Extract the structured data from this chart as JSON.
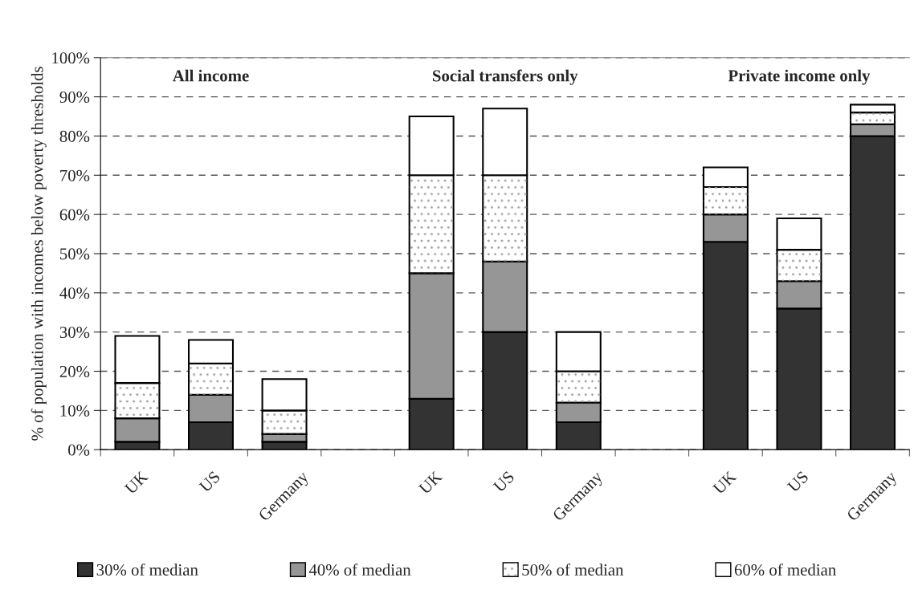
{
  "chart_data": {
    "type": "bar",
    "stacked": true,
    "ylabel": "% of population with incomes below poverty thresholds",
    "categories": [
      "UK",
      "US",
      "Germany",
      null,
      "UK",
      "US",
      "Germany",
      null,
      "UK",
      "US",
      "Germany"
    ],
    "series": [
      {
        "name": "30% of median",
        "color": "#333333",
        "values": [
          2,
          7,
          2,
          null,
          13,
          30,
          7,
          null,
          53,
          36,
          80
        ]
      },
      {
        "name": "40% of median",
        "color": "#969696",
        "values": [
          6,
          7,
          2,
          null,
          32,
          18,
          5,
          null,
          7,
          7,
          3
        ]
      },
      {
        "name": "50% of median",
        "color": "#ffffff",
        "values": [
          9,
          8,
          6,
          null,
          25,
          22,
          8,
          null,
          7,
          8,
          3
        ]
      },
      {
        "name": "60% of median",
        "color": "#ffffff",
        "values": [
          12,
          6,
          8,
          null,
          15,
          17,
          10,
          null,
          5,
          8,
          2
        ]
      }
    ],
    "annotations": [
      "All income",
      "Social transfers only",
      "Private income only"
    ],
    "ylim": [
      0,
      100
    ],
    "yticks": [
      {
        "value": 0,
        "label": "0%"
      },
      {
        "value": 10,
        "label": "10%"
      },
      {
        "value": 20,
        "label": "20%"
      },
      {
        "value": 30,
        "label": "30%"
      },
      {
        "value": 40,
        "label": "40%"
      },
      {
        "value": 50,
        "label": "50%"
      },
      {
        "value": 60,
        "label": "60%"
      },
      {
        "value": 70,
        "label": "70%"
      },
      {
        "value": 80,
        "label": "80%"
      },
      {
        "value": 90,
        "label": "90%"
      },
      {
        "value": 100,
        "label": "100%"
      }
    ],
    "grid": "y",
    "legend": "bottom"
  }
}
